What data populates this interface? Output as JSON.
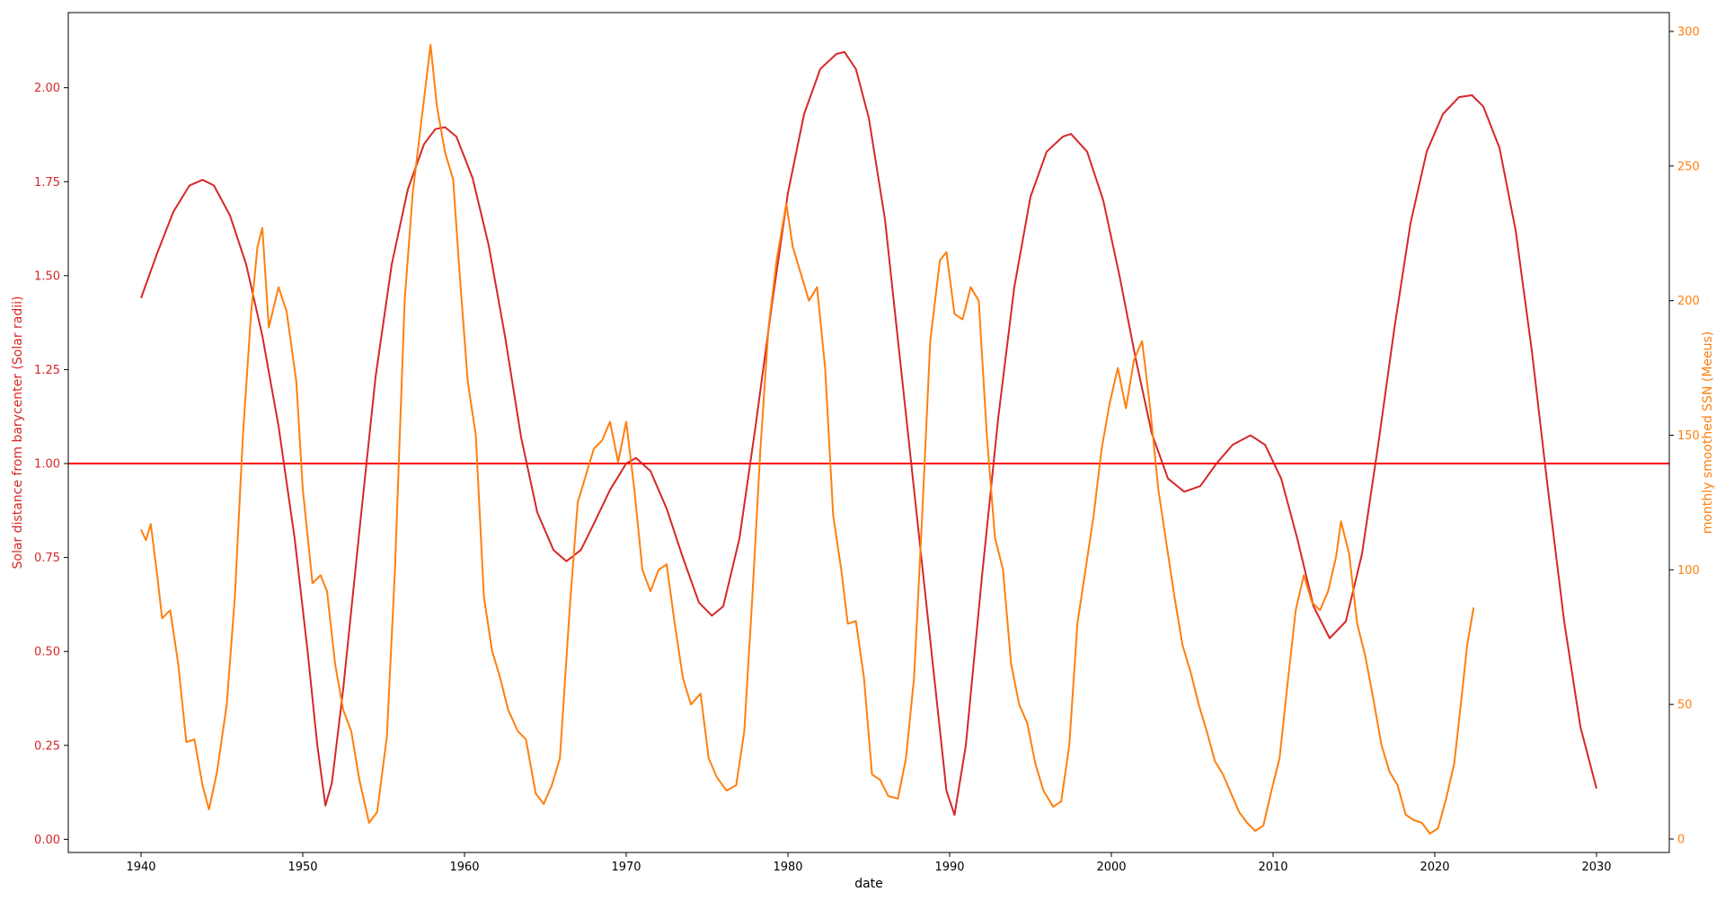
{
  "chart_data": {
    "type": "line",
    "title": "",
    "xlabel": "date",
    "ylabel_left": "Solar distance from barycenter (Solar radii)",
    "ylabel_right": "monthly smoothed SSN (Meeus)",
    "xlim": [
      1935.5,
      2034.5
    ],
    "ylim_left": [
      -0.035,
      2.2
    ],
    "ylim_right": [
      -5,
      307
    ],
    "x_ticks": [
      "1940",
      "1950",
      "1960",
      "1970",
      "1980",
      "1990",
      "2000",
      "2010",
      "2020",
      "2030"
    ],
    "y_left_ticks": [
      "0.00",
      "0.25",
      "0.50",
      "0.75",
      "1.00",
      "1.25",
      "1.50",
      "1.75",
      "2.00"
    ],
    "y_right_ticks": [
      "0",
      "50",
      "100",
      "150",
      "200",
      "250",
      "300"
    ],
    "colors": {
      "left": "#d62728",
      "right": "#ff7f0e",
      "reference_line": "#ff0000"
    },
    "grid": false,
    "reference_line": {
      "y": 1.0,
      "axis": "left"
    },
    "series": [
      {
        "axis": "left",
        "color": "#d62728",
        "points": [
          [
            1940.0,
            1.44
          ],
          [
            1941.0,
            1.56
          ],
          [
            1942.0,
            1.67
          ],
          [
            1943.0,
            1.74
          ],
          [
            1943.8,
            1.755
          ],
          [
            1944.5,
            1.74
          ],
          [
            1945.5,
            1.66
          ],
          [
            1946.5,
            1.53
          ],
          [
            1947.5,
            1.34
          ],
          [
            1948.5,
            1.1
          ],
          [
            1949.5,
            0.8
          ],
          [
            1950.3,
            0.5
          ],
          [
            1950.9,
            0.25
          ],
          [
            1951.4,
            0.09
          ],
          [
            1951.8,
            0.15
          ],
          [
            1952.5,
            0.4
          ],
          [
            1953.5,
            0.82
          ],
          [
            1954.5,
            1.23
          ],
          [
            1955.5,
            1.53
          ],
          [
            1956.5,
            1.73
          ],
          [
            1957.5,
            1.85
          ],
          [
            1958.2,
            1.89
          ],
          [
            1958.8,
            1.895
          ],
          [
            1959.5,
            1.87
          ],
          [
            1960.5,
            1.76
          ],
          [
            1961.5,
            1.58
          ],
          [
            1962.5,
            1.34
          ],
          [
            1963.5,
            1.07
          ],
          [
            1964.5,
            0.87
          ],
          [
            1965.5,
            0.77
          ],
          [
            1966.3,
            0.74
          ],
          [
            1967.2,
            0.77
          ],
          [
            1968.0,
            0.84
          ],
          [
            1969.0,
            0.93
          ],
          [
            1970.0,
            1.0
          ],
          [
            1970.6,
            1.015
          ],
          [
            1971.5,
            0.98
          ],
          [
            1972.5,
            0.88
          ],
          [
            1973.5,
            0.75
          ],
          [
            1974.5,
            0.63
          ],
          [
            1975.3,
            0.595
          ],
          [
            1976.0,
            0.62
          ],
          [
            1977.0,
            0.8
          ],
          [
            1978.0,
            1.1
          ],
          [
            1979.0,
            1.42
          ],
          [
            1980.0,
            1.72
          ],
          [
            1981.0,
            1.93
          ],
          [
            1982.0,
            2.05
          ],
          [
            1983.0,
            2.09
          ],
          [
            1983.5,
            2.095
          ],
          [
            1984.2,
            2.05
          ],
          [
            1985.0,
            1.92
          ],
          [
            1986.0,
            1.65
          ],
          [
            1987.0,
            1.25
          ],
          [
            1988.0,
            0.85
          ],
          [
            1989.0,
            0.45
          ],
          [
            1989.8,
            0.13
          ],
          [
            1990.3,
            0.065
          ],
          [
            1991.0,
            0.25
          ],
          [
            1992.0,
            0.7
          ],
          [
            1993.0,
            1.12
          ],
          [
            1994.0,
            1.47
          ],
          [
            1995.0,
            1.71
          ],
          [
            1996.0,
            1.83
          ],
          [
            1997.0,
            1.87
          ],
          [
            1997.5,
            1.877
          ],
          [
            1998.5,
            1.83
          ],
          [
            1999.5,
            1.7
          ],
          [
            2000.5,
            1.5
          ],
          [
            2001.5,
            1.28
          ],
          [
            2002.5,
            1.08
          ],
          [
            2003.5,
            0.96
          ],
          [
            2004.5,
            0.925
          ],
          [
            2005.5,
            0.94
          ],
          [
            2006.5,
            1.0
          ],
          [
            2007.5,
            1.05
          ],
          [
            2008.6,
            1.075
          ],
          [
            2009.5,
            1.05
          ],
          [
            2010.5,
            0.96
          ],
          [
            2011.5,
            0.8
          ],
          [
            2012.5,
            0.62
          ],
          [
            2013.5,
            0.535
          ],
          [
            2014.5,
            0.58
          ],
          [
            2015.5,
            0.76
          ],
          [
            2016.5,
            1.05
          ],
          [
            2017.5,
            1.36
          ],
          [
            2018.5,
            1.64
          ],
          [
            2019.5,
            1.83
          ],
          [
            2020.5,
            1.93
          ],
          [
            2021.5,
            1.975
          ],
          [
            2022.3,
            1.98
          ],
          [
            2023.0,
            1.95
          ],
          [
            2024.0,
            1.84
          ],
          [
            2025.0,
            1.62
          ],
          [
            2026.0,
            1.3
          ],
          [
            2027.0,
            0.93
          ],
          [
            2028.0,
            0.58
          ],
          [
            2029.0,
            0.3
          ],
          [
            2030.0,
            0.135
          ]
        ]
      },
      {
        "axis": "right",
        "color": "#ff7f0e",
        "points": [
          [
            1940.0,
            115
          ],
          [
            1940.3,
            111
          ],
          [
            1940.6,
            117
          ],
          [
            1941.0,
            98
          ],
          [
            1941.3,
            82
          ],
          [
            1941.8,
            85
          ],
          [
            1942.3,
            65
          ],
          [
            1942.8,
            36
          ],
          [
            1943.3,
            37
          ],
          [
            1943.8,
            20
          ],
          [
            1944.2,
            11
          ],
          [
            1944.7,
            25
          ],
          [
            1945.3,
            50
          ],
          [
            1945.8,
            90
          ],
          [
            1946.3,
            150
          ],
          [
            1946.8,
            195
          ],
          [
            1947.2,
            220
          ],
          [
            1947.5,
            227
          ],
          [
            1947.9,
            190
          ],
          [
            1948.5,
            205
          ],
          [
            1949.0,
            196
          ],
          [
            1949.6,
            170
          ],
          [
            1950.0,
            130
          ],
          [
            1950.6,
            95
          ],
          [
            1951.1,
            98
          ],
          [
            1951.5,
            92
          ],
          [
            1952.0,
            65
          ],
          [
            1952.5,
            48
          ],
          [
            1953.0,
            40
          ],
          [
            1953.5,
            22
          ],
          [
            1954.1,
            6
          ],
          [
            1954.6,
            10
          ],
          [
            1955.2,
            38
          ],
          [
            1955.7,
            100
          ],
          [
            1956.3,
            200
          ],
          [
            1956.8,
            240
          ],
          [
            1957.5,
            275
          ],
          [
            1957.9,
            295
          ],
          [
            1958.3,
            272
          ],
          [
            1958.8,
            255
          ],
          [
            1959.3,
            245
          ],
          [
            1959.7,
            210
          ],
          [
            1960.2,
            170
          ],
          [
            1960.7,
            150
          ],
          [
            1961.2,
            90
          ],
          [
            1961.7,
            70
          ],
          [
            1962.2,
            60
          ],
          [
            1962.7,
            48
          ],
          [
            1963.3,
            40
          ],
          [
            1963.8,
            37
          ],
          [
            1964.4,
            17
          ],
          [
            1964.9,
            13
          ],
          [
            1965.4,
            20
          ],
          [
            1965.9,
            30
          ],
          [
            1966.5,
            85
          ],
          [
            1967.0,
            125
          ],
          [
            1967.5,
            135
          ],
          [
            1968.0,
            145
          ],
          [
            1968.5,
            148
          ],
          [
            1969.0,
            155
          ],
          [
            1969.5,
            140
          ],
          [
            1970.0,
            155
          ],
          [
            1970.5,
            130
          ],
          [
            1971.0,
            100
          ],
          [
            1971.5,
            92
          ],
          [
            1972.0,
            100
          ],
          [
            1972.5,
            102
          ],
          [
            1973.0,
            80
          ],
          [
            1973.5,
            60
          ],
          [
            1974.0,
            50
          ],
          [
            1974.6,
            54
          ],
          [
            1975.1,
            30
          ],
          [
            1975.6,
            23
          ],
          [
            1976.2,
            18
          ],
          [
            1976.8,
            20
          ],
          [
            1977.3,
            40
          ],
          [
            1977.8,
            90
          ],
          [
            1978.3,
            145
          ],
          [
            1978.8,
            190
          ],
          [
            1979.3,
            215
          ],
          [
            1979.9,
            236
          ],
          [
            1980.3,
            220
          ],
          [
            1980.8,
            210
          ],
          [
            1981.3,
            200
          ],
          [
            1981.8,
            205
          ],
          [
            1982.3,
            175
          ],
          [
            1982.8,
            120
          ],
          [
            1983.3,
            100
          ],
          [
            1983.7,
            80
          ],
          [
            1984.2,
            81
          ],
          [
            1984.7,
            60
          ],
          [
            1985.2,
            24
          ],
          [
            1985.7,
            22
          ],
          [
            1986.2,
            16
          ],
          [
            1986.8,
            15
          ],
          [
            1987.3,
            30
          ],
          [
            1987.8,
            60
          ],
          [
            1988.3,
            120
          ],
          [
            1988.8,
            185
          ],
          [
            1989.4,
            215
          ],
          [
            1989.8,
            218
          ],
          [
            1990.3,
            195
          ],
          [
            1990.8,
            193
          ],
          [
            1991.3,
            205
          ],
          [
            1991.8,
            200
          ],
          [
            1992.3,
            150
          ],
          [
            1992.8,
            112
          ],
          [
            1993.3,
            100
          ],
          [
            1993.8,
            65
          ],
          [
            1994.3,
            50
          ],
          [
            1994.8,
            43
          ],
          [
            1995.3,
            28
          ],
          [
            1995.8,
            18
          ],
          [
            1996.4,
            12
          ],
          [
            1996.9,
            14
          ],
          [
            1997.4,
            35
          ],
          [
            1997.9,
            80
          ],
          [
            1998.4,
            100
          ],
          [
            1998.9,
            120
          ],
          [
            1999.4,
            145
          ],
          [
            1999.9,
            162
          ],
          [
            2000.4,
            175
          ],
          [
            2000.9,
            160
          ],
          [
            2001.4,
            178
          ],
          [
            2001.9,
            185
          ],
          [
            2002.4,
            160
          ],
          [
            2002.9,
            130
          ],
          [
            2003.4,
            110
          ],
          [
            2003.9,
            90
          ],
          [
            2004.4,
            72
          ],
          [
            2004.9,
            62
          ],
          [
            2005.4,
            50
          ],
          [
            2005.9,
            40
          ],
          [
            2006.4,
            29
          ],
          [
            2006.9,
            24
          ],
          [
            2007.4,
            17
          ],
          [
            2007.9,
            10
          ],
          [
            2008.4,
            6
          ],
          [
            2008.9,
            3
          ],
          [
            2009.4,
            5
          ],
          [
            2009.9,
            18
          ],
          [
            2010.4,
            30
          ],
          [
            2010.9,
            58
          ],
          [
            2011.4,
            85
          ],
          [
            2011.9,
            98
          ],
          [
            2012.4,
            88
          ],
          [
            2012.9,
            85
          ],
          [
            2013.4,
            92
          ],
          [
            2013.9,
            105
          ],
          [
            2014.2,
            118
          ],
          [
            2014.7,
            106
          ],
          [
            2015.2,
            80
          ],
          [
            2015.7,
            68
          ],
          [
            2016.2,
            52
          ],
          [
            2016.7,
            35
          ],
          [
            2017.2,
            25
          ],
          [
            2017.7,
            20
          ],
          [
            2018.2,
            9
          ],
          [
            2018.7,
            7
          ],
          [
            2019.2,
            6
          ],
          [
            2019.7,
            2
          ],
          [
            2020.2,
            4
          ],
          [
            2020.7,
            15
          ],
          [
            2021.2,
            28
          ],
          [
            2021.7,
            55
          ],
          [
            2022.0,
            72
          ],
          [
            2022.4,
            86
          ]
        ]
      }
    ]
  }
}
